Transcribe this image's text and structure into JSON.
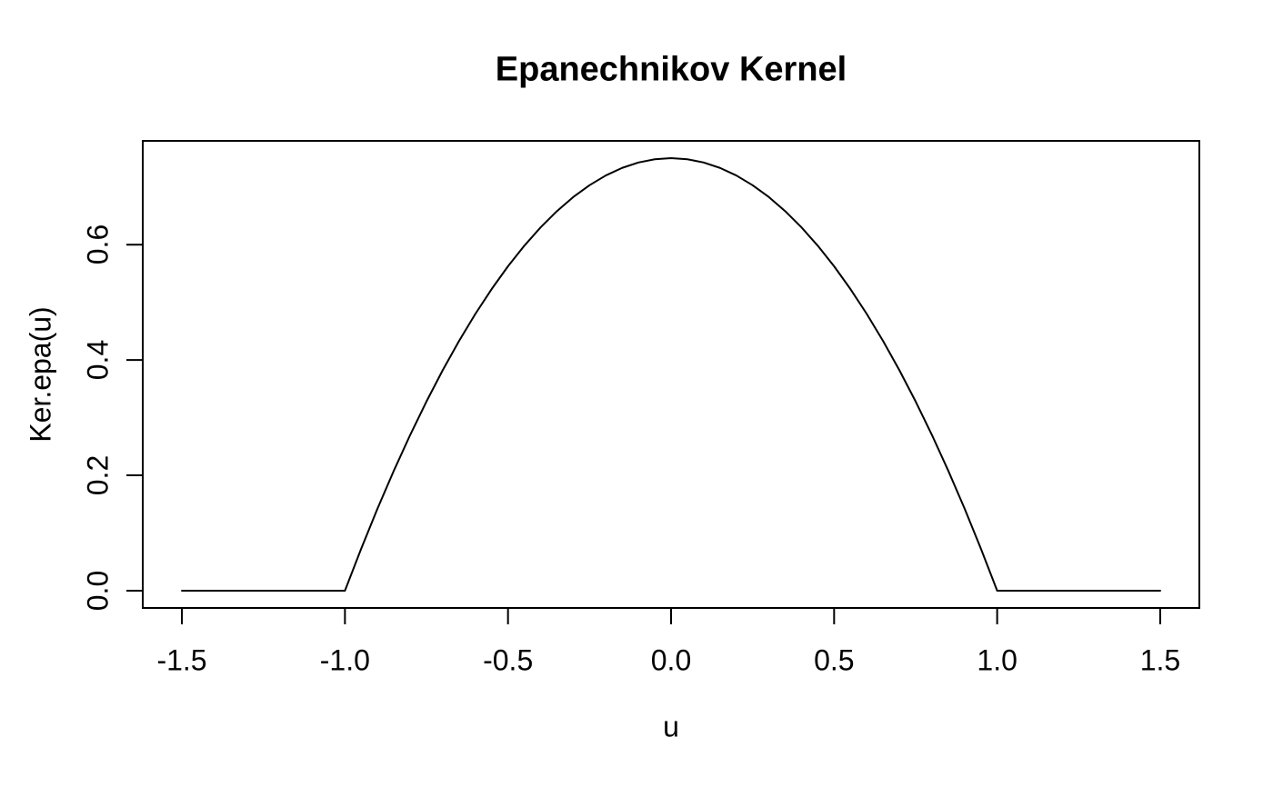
{
  "figure": {
    "background": "#ffffff",
    "foreground": "#000000"
  },
  "chart_data": {
    "type": "line",
    "title": "Epanechnikov Kernel",
    "xlabel": "u",
    "ylabel": "Ker.epa(u)",
    "xlim": [
      -1.62,
      1.62
    ],
    "ylim": [
      -0.03,
      0.78
    ],
    "grid": false,
    "legend": "none",
    "line_color": "#000000",
    "box_color": "#000000",
    "x_ticks": {
      "values": [
        -1.5,
        -1.0,
        -0.5,
        0.0,
        0.5,
        1.0,
        1.5
      ],
      "labels": [
        "-1.5",
        "-1.0",
        "-0.5",
        "0.0",
        "0.5",
        "1.0",
        "1.5"
      ]
    },
    "y_ticks": {
      "values": [
        0.0,
        0.2,
        0.4,
        0.6
      ],
      "labels": [
        "0.0",
        "0.2",
        "0.4",
        "0.6"
      ]
    },
    "series": [
      {
        "name": "Ker.epa(u)",
        "x": [
          -1.5,
          -1,
          -0.95,
          -0.9,
          -0.85,
          -0.8,
          -0.75,
          -0.7,
          -0.65,
          -0.6,
          -0.55,
          -0.5,
          -0.45,
          -0.4,
          -0.35,
          -0.3,
          -0.25,
          -0.2,
          -0.15,
          -0.1,
          -0.05,
          0,
          0.05,
          0.1,
          0.15,
          0.2,
          0.25,
          0.3,
          0.35,
          0.4,
          0.45,
          0.5,
          0.55,
          0.6,
          0.65,
          0.7,
          0.75,
          0.8,
          0.85,
          0.9,
          0.95,
          1,
          1.5
        ],
        "y": [
          0,
          0,
          0.0731,
          0.1425,
          0.2081,
          0.27,
          0.3281,
          0.3825,
          0.4331,
          0.48,
          0.5231,
          0.5625,
          0.5981,
          0.63,
          0.6581,
          0.6825,
          0.7031,
          0.72,
          0.7331,
          0.7425,
          0.7481,
          0.75,
          0.7481,
          0.7425,
          0.7331,
          0.72,
          0.7031,
          0.6825,
          0.6581,
          0.63,
          0.5981,
          0.5625,
          0.5231,
          0.48,
          0.4331,
          0.3825,
          0.3281,
          0.27,
          0.2081,
          0.1425,
          0.0731,
          0,
          0
        ]
      }
    ]
  }
}
